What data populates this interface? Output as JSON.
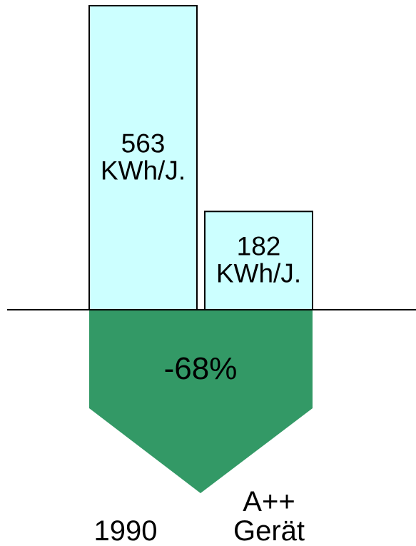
{
  "chart_data": {
    "type": "bar",
    "categories": [
      "1990",
      "A++\nGerät"
    ],
    "values": [
      563,
      182
    ],
    "value_unit": "KWh/J.",
    "bar_labels": [
      [
        "563",
        "KWh/J."
      ],
      [
        "182",
        "KWh/J."
      ]
    ],
    "category_labels": [
      [
        "1990"
      ],
      [
        "A++",
        "Gerät"
      ]
    ],
    "annotation": "-68%",
    "title": "",
    "xlabel": "",
    "ylabel": "",
    "ylim": [
      0,
      563
    ],
    "grid": false,
    "legend": "none"
  },
  "colors": {
    "bar": "#ccffff",
    "arrow": "#339966",
    "baseline": "#000000"
  }
}
